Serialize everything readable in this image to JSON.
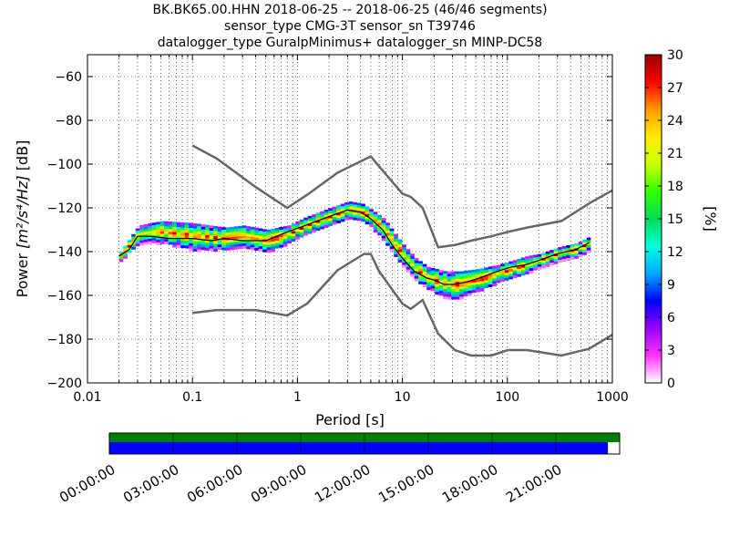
{
  "title": {
    "line1": "BK.BK65.00.HHN   2018-06-25 -- 2018-06-25  (46/46 segments)",
    "line2": "sensor_type CMG-3T sensor_sn T39746",
    "line3": "datalogger_type GuralpMinimus+ datalogger_sn MINP-DC58"
  },
  "chart_data": {
    "type": "heatmap",
    "xlabel": "Period [s]",
    "ylabel": "Power [m²/s⁴/Hz] [dB]",
    "ylabel_main": "Power ",
    "ylabel_unit": "[m²/s⁴/Hz]",
    "ylabel_db": " [dB]",
    "x_scale": "log",
    "xlim": [
      0.01,
      1000
    ],
    "ylim": [
      -200,
      -50
    ],
    "x_ticks": [
      0.01,
      0.1,
      1,
      10,
      100,
      1000
    ],
    "x_tick_labels": [
      "0.01",
      "0.1",
      "1",
      "10",
      "100",
      "1000"
    ],
    "y_ticks": [
      -200,
      -180,
      -160,
      -140,
      -120,
      -100,
      -80,
      -60
    ],
    "y_tick_labels": [
      "−200",
      "−180",
      "−160",
      "−140",
      "−120",
      "−100",
      "−80",
      "−60"
    ],
    "grid": "dotted",
    "colorbar": {
      "label": "[%]",
      "range": [
        0,
        30
      ],
      "ticks": [
        0,
        3,
        6,
        9,
        12,
        15,
        18,
        21,
        24,
        27,
        30
      ],
      "tick_labels": [
        "0",
        "3",
        "6",
        "9",
        "12",
        "15",
        "18",
        "21",
        "24",
        "27",
        "30"
      ],
      "colormap": [
        "#ffffff",
        "#ff33ff",
        "#9900ff",
        "#0000ff",
        "#00aaff",
        "#00ffdd",
        "#00dd55",
        "#33ff00",
        "#ccff00",
        "#ffee00",
        "#ff9900",
        "#ff0000",
        "#990000"
      ]
    },
    "nhnm": {
      "x": [
        0.1,
        0.17,
        0.4,
        0.8,
        1.24,
        2.4,
        4.3,
        5.0,
        6.0,
        10.0,
        12.0,
        15.6,
        21.9,
        31.6,
        45.0,
        70.0,
        101,
        154,
        328,
        600,
        1000
      ],
      "y": [
        -91.5,
        -97.4,
        -110.5,
        -120.0,
        -114.0,
        -104.0,
        -98.0,
        -96.5,
        -101.0,
        -113.5,
        -115.0,
        -120.0,
        -138.0,
        -137.0,
        -135.0,
        -133.0,
        -131.0,
        -129.0,
        -126.0,
        -118.0,
        -112.0
      ]
    },
    "nlnm": {
      "x": [
        0.1,
        0.17,
        0.4,
        0.8,
        1.24,
        2.4,
        4.3,
        5.0,
        6.0,
        10.0,
        12.0,
        15.6,
        21.9,
        31.6,
        45.0,
        70.0,
        101,
        154,
        328,
        600,
        1000
      ],
      "y": [
        -168.0,
        -166.7,
        -166.7,
        -169.2,
        -163.7,
        -148.6,
        -141.1,
        -141.1,
        -149.0,
        -163.8,
        -166.2,
        -162.1,
        -177.5,
        -185.0,
        -187.5,
        -187.5,
        -185.0,
        -185.0,
        -187.5,
        -184.4,
        -178.0
      ]
    },
    "mode": {
      "x": [
        0.02,
        0.025,
        0.03,
        0.04,
        0.06,
        0.1,
        0.15,
        0.2,
        0.3,
        0.5,
        0.8,
        1.2,
        2.0,
        3.0,
        4.0,
        5.0,
        6.5,
        8.0,
        10.0,
        13.0,
        17.0,
        20.0,
        25.0,
        30.0,
        40.0,
        55.0,
        80.0,
        110.0,
        150.0,
        200.0,
        300.0,
        450.0,
        600.0
      ],
      "y": [
        -142,
        -139,
        -133,
        -133,
        -134,
        -134,
        -135,
        -134,
        -135,
        -135,
        -131,
        -128,
        -124,
        -121,
        -122,
        -125,
        -130,
        -137,
        -143,
        -149,
        -152,
        -153,
        -155,
        -155,
        -154,
        -152,
        -149,
        -147,
        -146,
        -144,
        -141,
        -139,
        -136
      ]
    },
    "heat_band": {
      "x": [
        0.02,
        0.03,
        0.05,
        0.1,
        0.2,
        0.3,
        0.5,
        0.8,
        1.2,
        2.0,
        3.0,
        4.0,
        5.0,
        6.5,
        8.0,
        10.0,
        13.0,
        17.0,
        25.0,
        35.0,
        50.0,
        80.0,
        110.0,
        150.0,
        200.0,
        300.0,
        450.0,
        600.0
      ],
      "center": [
        -142,
        -132,
        -131,
        -133,
        -134,
        -133,
        -135,
        -132,
        -128,
        -124,
        -121,
        -122,
        -125,
        -130,
        -136,
        -142,
        -148,
        -152,
        -155,
        -155,
        -153,
        -150,
        -148,
        -146,
        -144,
        -141,
        -139,
        -136
      ],
      "half_width": [
        2,
        4,
        5,
        6,
        5,
        5,
        5,
        4,
        4,
        4,
        4,
        4,
        4,
        5,
        5,
        5,
        5,
        5,
        6,
        6,
        5,
        4,
        4,
        4,
        3,
        3,
        3,
        3
      ]
    },
    "time_bar": {
      "labels": [
        "00:00:00",
        "03:00:00",
        "06:00:00",
        "09:00:00",
        "12:00:00",
        "15:00:00",
        "18:00:00",
        "21:00:00"
      ],
      "green_color": "#008000",
      "blue_color": "#0000ff",
      "blue_coverage": 0.977
    }
  }
}
